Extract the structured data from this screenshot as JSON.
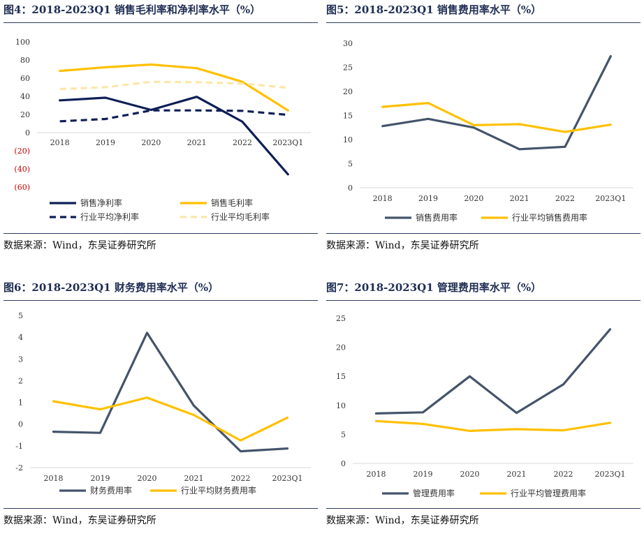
{
  "colors": {
    "title": "#1f2d54",
    "navy": "#0e1f57",
    "slate": "#44546a",
    "gold": "#ffc000",
    "pale_gold": "#fce7a8",
    "negative_tick": "#c00000"
  },
  "panels": [
    {
      "title": "图4：2018-2023Q1 销售毛利率和净利率水平（%）",
      "source": "数据来源：Wind，东吴证券研究所"
    },
    {
      "title": "图5：2018-2023Q1 销售费用率水平（%）",
      "source": "数据来源：Wind，东吴证券研究所"
    },
    {
      "title": "图6：2018-2023Q1 财务费用率水平（%）",
      "source": "数据来源：Wind，东吴证券研究所"
    },
    {
      "title": "图7：2018-2023Q1 管理费用率水平（%）",
      "source": "数据来源：Wind，东吴证券研究所"
    }
  ],
  "chart_data": [
    {
      "type": "line",
      "title": "图4：2018-2023Q1 销售毛利率和净利率水平（%）",
      "categories": [
        "2018",
        "2019",
        "2020",
        "2021",
        "2022",
        "2023Q1"
      ],
      "ylim": [
        -60,
        100
      ],
      "yticks": [
        100,
        80,
        60,
        40,
        20,
        0,
        -20,
        -40,
        -60
      ],
      "ytick_labels": [
        "100",
        "80",
        "60",
        "40",
        "20",
        "0",
        "(20)",
        "(40)",
        "(60)"
      ],
      "legend": "bottom",
      "legend_columns": 2,
      "series": [
        {
          "name": "销售净利率",
          "values": [
            35.5,
            38.5,
            25,
            39.5,
            12,
            -46
          ],
          "color": "#0e1f57",
          "dash": "solid"
        },
        {
          "name": "销售毛利率",
          "values": [
            68,
            72,
            75,
            71,
            56,
            24.5
          ],
          "color": "#ffc000",
          "dash": "solid"
        },
        {
          "name": "行业平均净利率",
          "values": [
            12.5,
            15,
            24.5,
            24.5,
            24,
            19.5
          ],
          "color": "#0e1f57",
          "dash": "dashed"
        },
        {
          "name": "行业平均毛利率",
          "values": [
            48,
            50,
            56,
            55.5,
            54,
            49.5
          ],
          "color": "#fce7a8",
          "dash": "dashed"
        }
      ]
    },
    {
      "type": "line",
      "title": "图5：2018-2023Q1 销售费用率水平（%）",
      "categories": [
        "2018",
        "2019",
        "2020",
        "2021",
        "2022",
        "2023Q1"
      ],
      "ylim": [
        0,
        30
      ],
      "yticks": [
        30,
        25,
        20,
        15,
        10,
        5,
        0
      ],
      "ytick_labels": [
        "30",
        "25",
        "20",
        "15",
        "10",
        "5",
        "0"
      ],
      "legend": "bottom",
      "legend_columns": 2,
      "series": [
        {
          "name": "销售费用率",
          "values": [
            12.8,
            14.3,
            12.5,
            8.0,
            8.5,
            27.3
          ],
          "color": "#44546a",
          "dash": "solid"
        },
        {
          "name": "行业平均销售费用率",
          "values": [
            16.8,
            17.6,
            13.0,
            13.2,
            11.6,
            13.1
          ],
          "color": "#ffc000",
          "dash": "solid"
        }
      ]
    },
    {
      "type": "line",
      "title": "图6：2018-2023Q1 财务费用率水平（%）",
      "categories": [
        "2018",
        "2019",
        "2020",
        "2021",
        "2022",
        "2023Q1"
      ],
      "ylim": [
        -2,
        5
      ],
      "yticks": [
        5,
        4,
        3,
        2,
        1,
        0,
        -1,
        -2
      ],
      "ytick_labels": [
        "5",
        "4",
        "3",
        "2",
        "1",
        "0",
        "-1",
        "-2"
      ],
      "legend": "bottom",
      "legend_columns": 2,
      "series": [
        {
          "name": "财务费用率",
          "values": [
            -0.35,
            -0.4,
            4.2,
            0.85,
            -1.25,
            -1.12
          ],
          "color": "#44546a",
          "dash": "solid"
        },
        {
          "name": "行业平均财务费用率",
          "values": [
            1.05,
            0.68,
            1.22,
            0.42,
            -0.75,
            0.3
          ],
          "color": "#ffc000",
          "dash": "solid"
        }
      ]
    },
    {
      "type": "line",
      "title": "图7：2018-2023Q1 管理费用率水平（%）",
      "categories": [
        "2018",
        "2019",
        "2020",
        "2021",
        "2022",
        "2023Q1"
      ],
      "ylim": [
        0,
        25
      ],
      "yticks": [
        25,
        20,
        15,
        10,
        5,
        0
      ],
      "ytick_labels": [
        "25",
        "20",
        "15",
        "10",
        "5",
        "0"
      ],
      "legend": "bottom",
      "legend_columns": 2,
      "series": [
        {
          "name": "管理费用率",
          "values": [
            8.6,
            8.8,
            15.0,
            8.7,
            13.6,
            23.1
          ],
          "color": "#44546a",
          "dash": "solid"
        },
        {
          "name": "行业平均管理费用率",
          "values": [
            7.3,
            6.8,
            5.6,
            5.9,
            5.7,
            7.0
          ],
          "color": "#ffc000",
          "dash": "solid"
        }
      ]
    }
  ]
}
